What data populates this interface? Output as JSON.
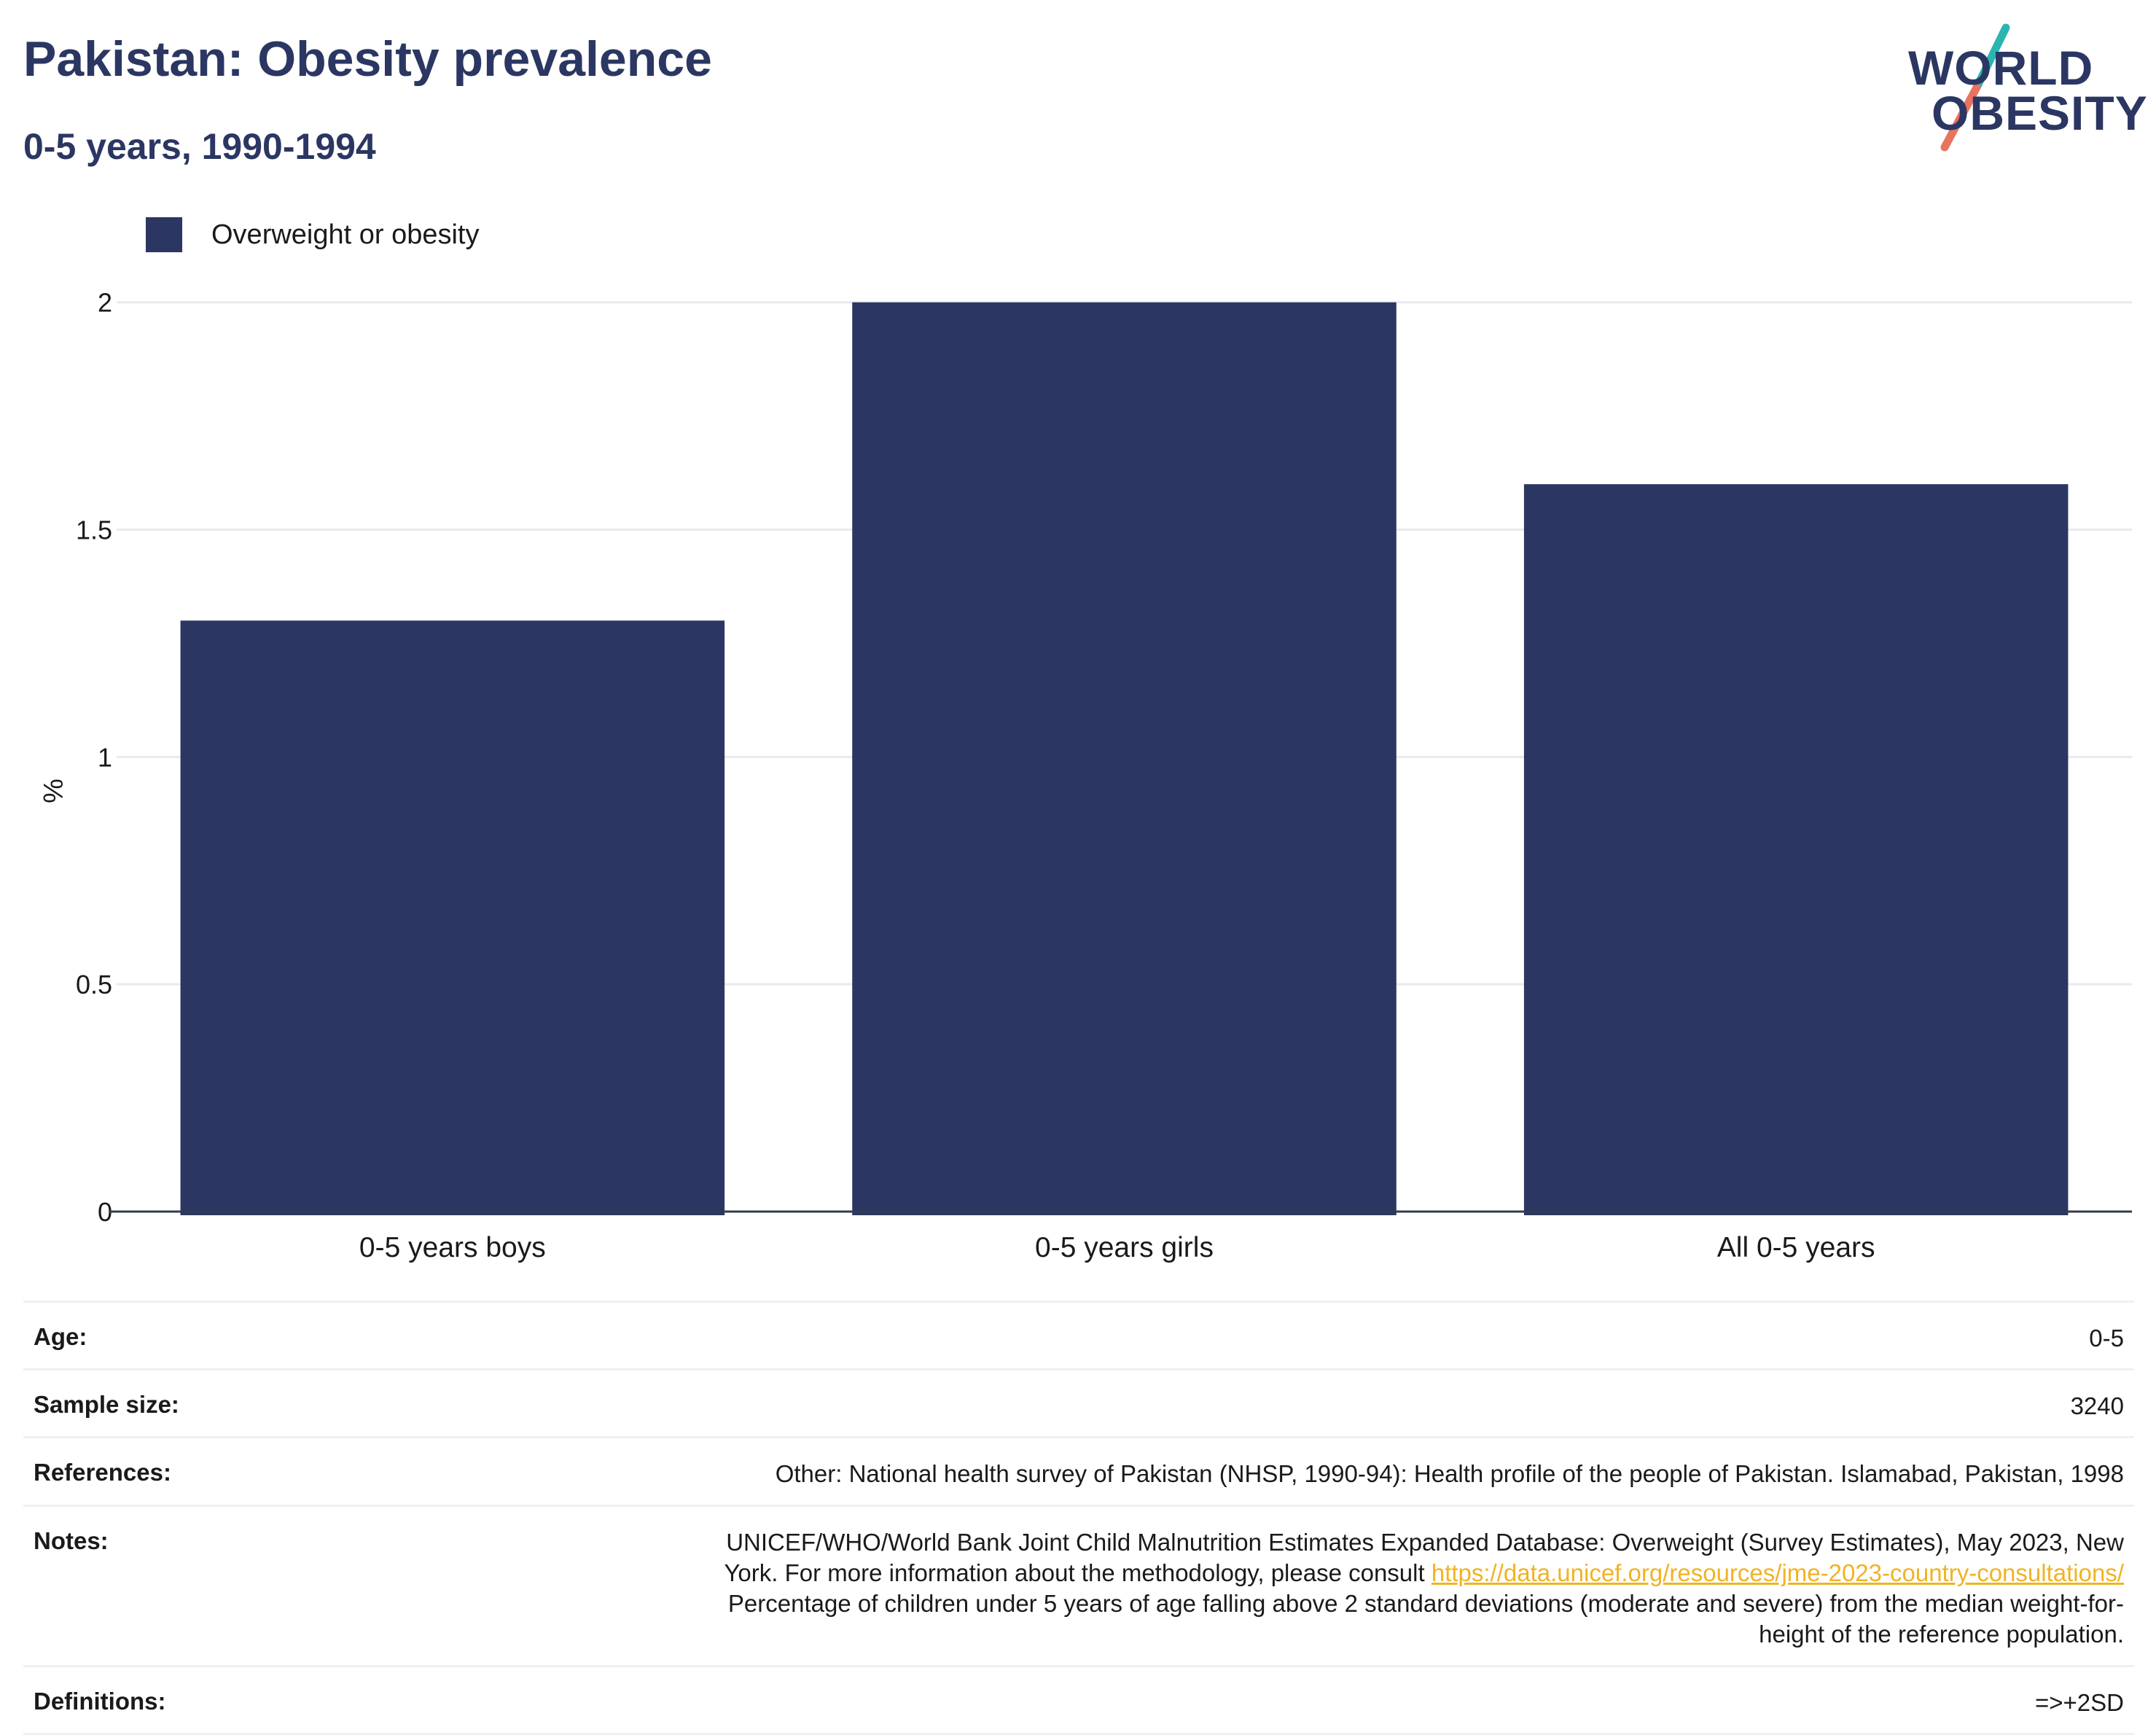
{
  "header": {
    "title": "Pakistan: Obesity prevalence",
    "subtitle": "0-5 years, 1990-1994"
  },
  "logo": {
    "line1": "WORLD",
    "line2": "OBESITY",
    "colors": {
      "navy": "#2b3762",
      "teal": "#2bb5b0",
      "coral": "#e8735f"
    }
  },
  "legend": {
    "label": "Overweight or obesity",
    "color": "#2b3762"
  },
  "chart_data": {
    "type": "bar",
    "title": "Pakistan: Obesity prevalence",
    "subtitle": "0-5 years, 1990-1994",
    "categories": [
      "0-5 years boys",
      "0-5 years girls",
      "All 0-5 years"
    ],
    "series": [
      {
        "name": "Overweight or obesity",
        "values": [
          1.3,
          2.0,
          1.6
        ],
        "color": "#2b3762"
      }
    ],
    "xlabel": "",
    "ylabel": "%",
    "ylim": [
      0,
      2.2
    ],
    "yticks": [
      0,
      0.5,
      1,
      1.5,
      2
    ],
    "ytick_labels": [
      "0",
      "0.5",
      "1",
      "1.5",
      "2"
    ],
    "grid": true,
    "legend_position": "top-left"
  },
  "info": {
    "age": {
      "label": "Age:",
      "value": "0-5"
    },
    "sample_size": {
      "label": "Sample size:",
      "value": "3240"
    },
    "references": {
      "label": "References:",
      "value": "Other: National health survey of Pakistan (NHSP, 1990-94): Health profile of the people of Pakistan. Islamabad, Pakistan, 1998"
    },
    "notes": {
      "label": "Notes:",
      "line1": "UNICEF/WHO/World Bank Joint Child Malnutrition Estimates Expanded Database: Overweight (Survey Estimates), May 2023, New",
      "line2_prefix": "York. For more information about the methodology, please consult",
      "link": "https://data.unicef.org/resources/jme-2023-country-consultations/",
      "line3": "Percentage of children under 5 years of age falling above 2 standard deviations (moderate and severe) from the median weight-for-",
      "line4": "height of the reference population."
    },
    "definitions": {
      "label": "Definitions:",
      "value": "=>+2SD"
    }
  }
}
